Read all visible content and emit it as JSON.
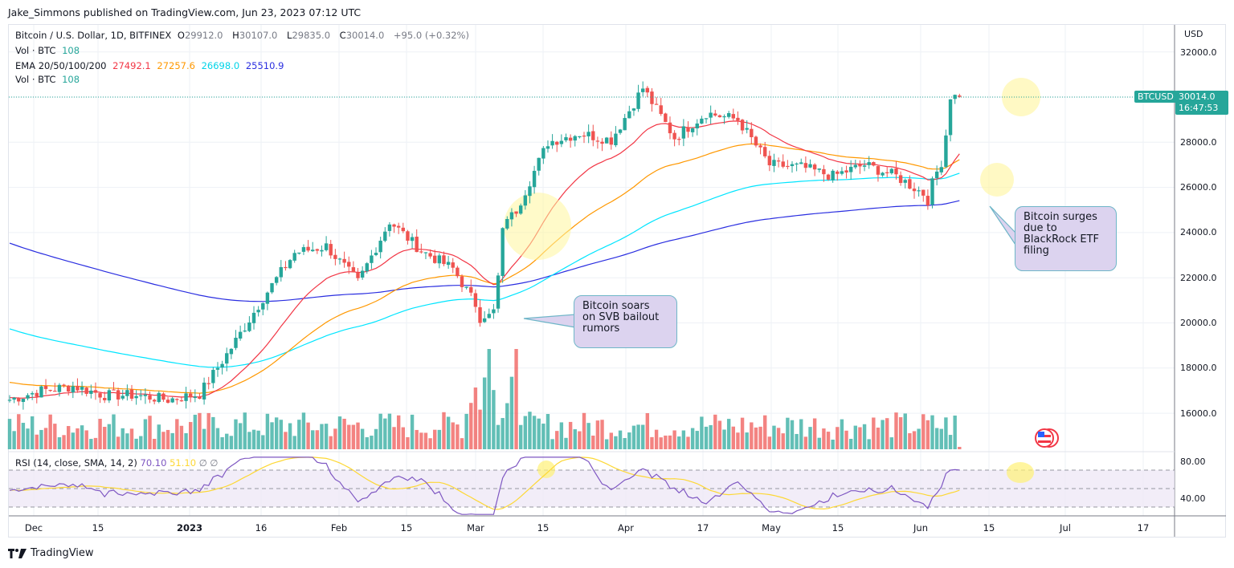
{
  "header": {
    "published_by": "Jake_Simmons published on TradingView.com, Jun 23, 2023 07:12 UTC"
  },
  "legend": {
    "symbol": "Bitcoin / U.S. Dollar, 1D, BITFINEX",
    "open_label": "O",
    "open": "29912.0",
    "high_label": "H",
    "high": "30107.0",
    "low_label": "L",
    "low": "29835.0",
    "close_label": "C",
    "close": "30014.0",
    "change": "+95.0 (+0.32%)",
    "vol_label": "Vol · BTC",
    "vol_value": "108",
    "ema_label": "EMA 20/50/100/200",
    "ema20": "27492.1",
    "ema50": "27257.6",
    "ema100": "26698.0",
    "ema200": "25510.9",
    "vol2_label": "Vol · BTC",
    "vol2_value": "108"
  },
  "rsi_legend": {
    "label": "RSI (14, close, SMA, 14, 2)",
    "rsi": "70.10",
    "sma": "51.10",
    "na1": "∅",
    "na2": "∅"
  },
  "price_axis": {
    "currency": "USD",
    "ticks": [
      "32000.0",
      "28000.0",
      "26000.0",
      "24000.0",
      "22000.0",
      "20000.0",
      "18000.0",
      "16000.0"
    ],
    "last_symbol": "BTCUSD",
    "last_price": "30014.0",
    "countdown": "16:47:53"
  },
  "rsi_axis": {
    "ticks": [
      "80.00",
      "40.00"
    ]
  },
  "time_axis": {
    "ticks": [
      {
        "label": "Dec",
        "bold": false
      },
      {
        "label": "15",
        "bold": false
      },
      {
        "label": "2023",
        "bold": true
      },
      {
        "label": "16",
        "bold": false
      },
      {
        "label": "Feb",
        "bold": false
      },
      {
        "label": "15",
        "bold": false
      },
      {
        "label": "Mar",
        "bold": false
      },
      {
        "label": "15",
        "bold": false
      },
      {
        "label": "Apr",
        "bold": false
      },
      {
        "label": "17",
        "bold": false
      },
      {
        "label": "May",
        "bold": false
      },
      {
        "label": "15",
        "bold": false
      },
      {
        "label": "Jun",
        "bold": false
      },
      {
        "label": "15",
        "bold": false
      },
      {
        "label": "Jul",
        "bold": false
      },
      {
        "label": "17",
        "bold": false
      }
    ]
  },
  "annotations": {
    "svb": "Bitcoin soars on SVB bailout rumors",
    "svb_lines": [
      "Bitcoin soars",
      "on SVB bailout",
      "rumors"
    ],
    "etf_lines": [
      "Bitcoin surges",
      "due to",
      "BlackRock ETF",
      "filing"
    ]
  },
  "footer": {
    "brand": "TradingView"
  },
  "colors": {
    "up": "#26a69a",
    "down": "#ef5350",
    "ema20": "#f23645",
    "ema50": "#ff9800",
    "ema100": "#00e5ff",
    "ema200": "#2a2ee0",
    "rsi": "#7e57c2",
    "rsi_sma": "#fdd835",
    "callout_bg": "#d1c4e9"
  },
  "chart_data": {
    "type": "candlestick",
    "title": "Bitcoin / U.S. Dollar, 1D, BITFINEX",
    "ylabel": "USD",
    "ylim": [
      15000,
      33000
    ],
    "x_range": [
      "2022-11-24",
      "2023-07-24"
    ],
    "grid": true,
    "last": {
      "open": 29912.0,
      "high": 30107.0,
      "low": 29835.0,
      "close": 30014.0,
      "change": 95.0,
      "change_pct": 0.32
    },
    "indicators": {
      "EMA20": 27492.1,
      "EMA50": 27257.6,
      "EMA100": 26698.0,
      "EMA200": 25510.9,
      "Vol_BTC": 108,
      "RSI14": 70.1,
      "RSI_SMA14": 51.1
    },
    "closes_weekly_approx": [
      {
        "date": "2022-11-24",
        "close": 16600
      },
      {
        "date": "2022-12-01",
        "close": 17000
      },
      {
        "date": "2022-12-08",
        "close": 17200
      },
      {
        "date": "2022-12-15",
        "close": 16800
      },
      {
        "date": "2022-12-22",
        "close": 16800
      },
      {
        "date": "2022-12-29",
        "close": 16600
      },
      {
        "date": "2023-01-05",
        "close": 16850
      },
      {
        "date": "2023-01-12",
        "close": 18900
      },
      {
        "date": "2023-01-19",
        "close": 21100
      },
      {
        "date": "2023-01-26",
        "close": 23100
      },
      {
        "date": "2023-02-02",
        "close": 23400
      },
      {
        "date": "2023-02-09",
        "close": 21800
      },
      {
        "date": "2023-02-16",
        "close": 24500
      },
      {
        "date": "2023-02-23",
        "close": 23200
      },
      {
        "date": "2023-03-02",
        "close": 22400
      },
      {
        "date": "2023-03-09",
        "close": 20200
      },
      {
        "date": "2023-03-16",
        "close": 25000
      },
      {
        "date": "2023-03-23",
        "close": 28000
      },
      {
        "date": "2023-03-30",
        "close": 28400
      },
      {
        "date": "2023-04-06",
        "close": 28100
      },
      {
        "date": "2023-04-13",
        "close": 30400
      },
      {
        "date": "2023-04-20",
        "close": 28200
      },
      {
        "date": "2023-04-27",
        "close": 29300
      },
      {
        "date": "2023-05-04",
        "close": 29000
      },
      {
        "date": "2023-05-11",
        "close": 27000
      },
      {
        "date": "2023-05-18",
        "close": 26900
      },
      {
        "date": "2023-05-25",
        "close": 26500
      },
      {
        "date": "2023-06-01",
        "close": 27000
      },
      {
        "date": "2023-06-08",
        "close": 26500
      },
      {
        "date": "2023-06-15",
        "close": 25600
      },
      {
        "date": "2023-06-22",
        "close": 30000
      }
    ],
    "annotations": [
      {
        "date": "2023-03-10",
        "text": "Bitcoin soars on SVB bailout rumors"
      },
      {
        "date": "2023-06-15",
        "text": "Bitcoin surges due to BlackRock ETF filing"
      }
    ]
  }
}
